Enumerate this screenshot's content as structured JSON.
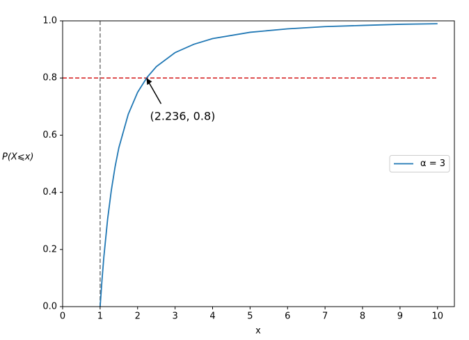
{
  "chart_data": {
    "type": "line",
    "xlabel": "x",
    "ylabel": "P(X⩽x)",
    "xlim": [
      0,
      10.45
    ],
    "ylim": [
      0,
      1
    ],
    "xticks": [
      0,
      1,
      2,
      3,
      4,
      5,
      6,
      7,
      8,
      9,
      10
    ],
    "yticks": [
      {
        "value": 0,
        "label": "0.0"
      },
      {
        "value": 0.2,
        "label": "0.2"
      },
      {
        "value": 0.4,
        "label": "0.4"
      },
      {
        "value": 0.6,
        "label": "0.6"
      },
      {
        "value": 0.8,
        "label": "0.8"
      },
      {
        "value": 1,
        "label": "1.0"
      }
    ],
    "legend": "center right",
    "series": [
      {
        "name": "α = 3",
        "color": "#1f77b4",
        "x": [
          1,
          1.05,
          1.1,
          1.2,
          1.3,
          1.4,
          1.5,
          1.75,
          2,
          2.25,
          2.5,
          3,
          3.5,
          4,
          5,
          6,
          7,
          8,
          9,
          10
        ],
        "values": [
          0,
          0.093,
          0.174,
          0.306,
          0.408,
          0.49,
          0.556,
          0.673,
          0.75,
          0.802,
          0.84,
          0.889,
          0.918,
          0.938,
          0.96,
          0.972,
          0.98,
          0.984,
          0.988,
          0.99
        ]
      }
    ],
    "reference_lines": [
      {
        "axis": "y",
        "value": 0.8,
        "from": 0,
        "to": 10,
        "color": "#d62728"
      },
      {
        "axis": "x",
        "value": 1,
        "from": 0,
        "to": 1,
        "color": "#7f7f7f"
      }
    ],
    "annotations": [
      {
        "text": "(2.236,  0.8)",
        "x": 2.236,
        "y": 0.8
      }
    ]
  }
}
